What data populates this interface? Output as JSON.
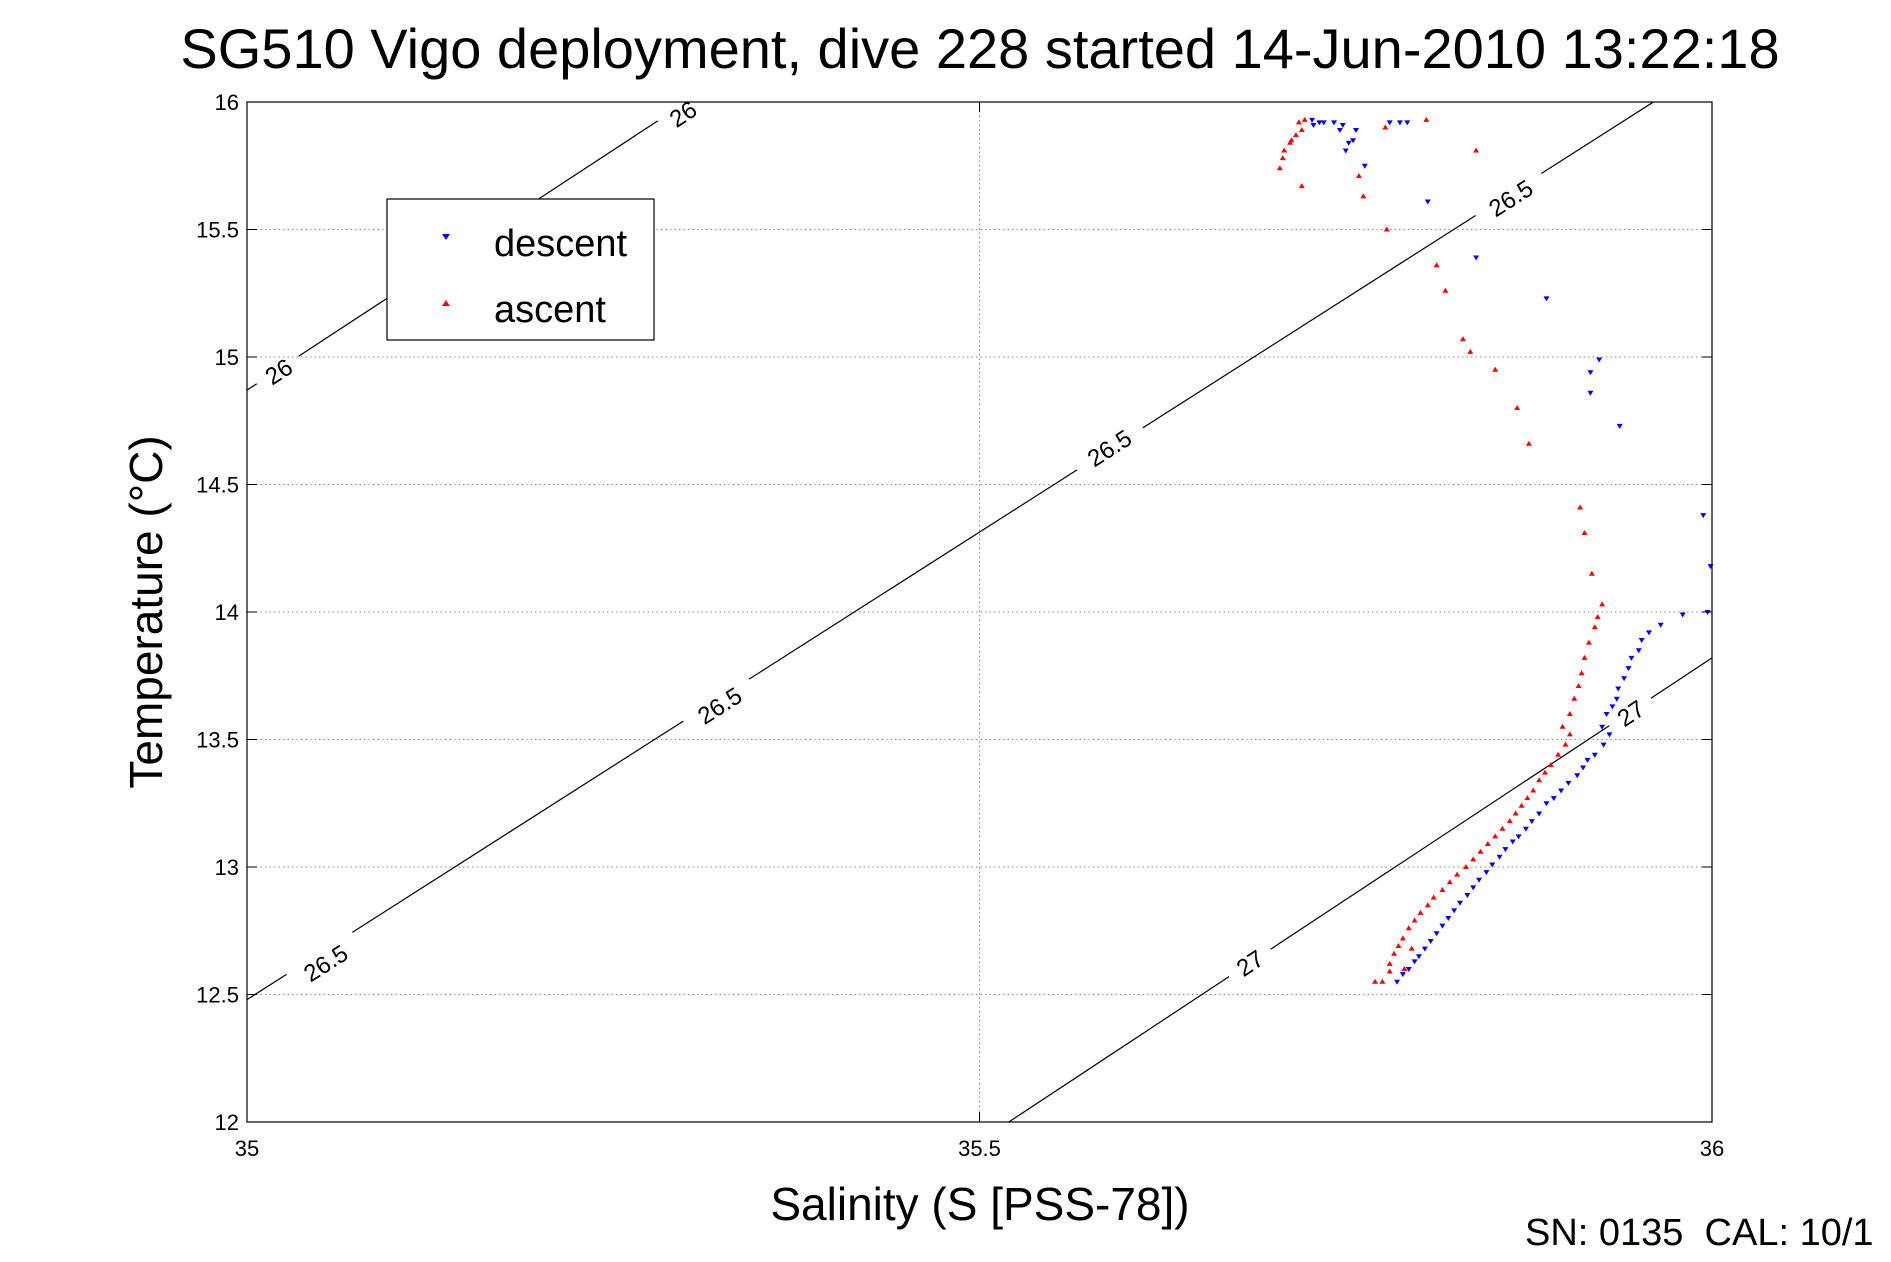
{
  "chart_data": {
    "type": "scatter",
    "title": "SG510 Vigo deployment, dive 228 started 14-Jun-2010 13:22:18",
    "xlabel": "Salinity (S [PSS-78])",
    "ylabel": "Temperature (°C)",
    "xlim": [
      35,
      36
    ],
    "ylim": [
      12,
      16
    ],
    "x_ticks": [
      "35",
      "35.5",
      "36"
    ],
    "y_ticks": [
      "12",
      "12.5",
      "13",
      "13.5",
      "14",
      "14.5",
      "15",
      "15.5",
      "16"
    ],
    "grid": true,
    "legend_position": "top-left",
    "footer_text": "SN: 0135  CAL: 10/1",
    "colors": {
      "descent": "#0000ff",
      "ascent": "#ff0000",
      "contour": "#000000",
      "grid": "#888888"
    },
    "contours": [
      {
        "label": "26",
        "points": [
          [
            35.0,
            14.87
          ],
          [
            35.3,
            16.0
          ]
        ],
        "label_positions": [
          [
            35.022,
            14.94
          ],
          [
            35.298,
            15.95
          ]
        ]
      },
      {
        "label": "26.5",
        "points": [
          [
            35.0,
            12.48
          ],
          [
            35.96,
            16.0
          ]
        ],
        "label_positions": [
          [
            35.054,
            12.62
          ],
          [
            35.323,
            13.63
          ],
          [
            35.589,
            14.64
          ],
          [
            35.863,
            15.62
          ]
        ]
      },
      {
        "label": "27",
        "points": [
          [
            35.52,
            12.0
          ],
          [
            36.0,
            13.82
          ]
        ],
        "label_positions": [
          [
            35.685,
            12.62
          ],
          [
            35.945,
            13.6
          ]
        ]
      }
    ],
    "series": [
      {
        "name": "descent",
        "marker": "triangle-down",
        "points": [
          [
            35.727,
            15.93
          ],
          [
            35.732,
            15.92
          ],
          [
            35.728,
            15.91
          ],
          [
            35.735,
            15.92
          ],
          [
            35.742,
            15.92
          ],
          [
            35.748,
            15.91
          ],
          [
            35.746,
            15.89
          ],
          [
            35.757,
            15.89
          ],
          [
            35.78,
            15.92
          ],
          [
            35.787,
            15.92
          ],
          [
            35.792,
            15.92
          ],
          [
            35.752,
            15.84
          ],
          [
            35.755,
            15.85
          ],
          [
            35.75,
            15.81
          ],
          [
            35.763,
            15.75
          ],
          [
            35.806,
            15.61
          ],
          [
            35.839,
            15.39
          ],
          [
            35.887,
            15.23
          ],
          [
            35.923,
            14.99
          ],
          [
            35.917,
            14.94
          ],
          [
            35.917,
            14.86
          ],
          [
            35.937,
            14.73
          ],
          [
            35.994,
            14.38
          ],
          [
            35.999,
            14.18
          ],
          [
            35.997,
            14.0
          ],
          [
            35.98,
            13.99
          ],
          [
            35.965,
            13.95
          ],
          [
            35.957,
            13.92
          ],
          [
            35.952,
            13.89
          ],
          [
            35.95,
            13.85
          ],
          [
            35.945,
            13.82
          ],
          [
            35.943,
            13.78
          ],
          [
            35.94,
            13.74
          ],
          [
            35.936,
            13.7
          ],
          [
            35.935,
            13.66
          ],
          [
            35.932,
            13.63
          ],
          [
            35.928,
            13.6
          ],
          [
            35.925,
            13.55
          ],
          [
            35.93,
            13.52
          ],
          [
            35.926,
            13.48
          ],
          [
            35.92,
            13.44
          ],
          [
            35.915,
            13.42
          ],
          [
            35.912,
            13.39
          ],
          [
            35.908,
            13.36
          ],
          [
            35.902,
            13.33
          ],
          [
            35.897,
            13.3
          ],
          [
            35.892,
            13.27
          ],
          [
            35.887,
            13.25
          ],
          [
            35.882,
            13.21
          ],
          [
            35.877,
            13.18
          ],
          [
            35.873,
            13.15
          ],
          [
            35.868,
            13.12
          ],
          [
            35.864,
            13.1
          ],
          [
            35.859,
            13.07
          ],
          [
            35.855,
            13.04
          ],
          [
            35.85,
            13.01
          ],
          [
            35.846,
            12.98
          ],
          [
            35.841,
            12.95
          ],
          [
            35.837,
            12.92
          ],
          [
            35.833,
            12.89
          ],
          [
            35.828,
            12.86
          ],
          [
            35.824,
            12.83
          ],
          [
            35.82,
            12.8
          ],
          [
            35.816,
            12.77
          ],
          [
            35.812,
            12.74
          ],
          [
            35.808,
            12.71
          ],
          [
            35.804,
            12.68
          ],
          [
            35.8,
            12.65
          ],
          [
            35.797,
            12.63
          ],
          [
            35.793,
            12.6
          ],
          [
            35.789,
            12.58
          ],
          [
            35.785,
            12.55
          ]
        ]
      },
      {
        "name": "ascent",
        "marker": "triangle-up",
        "points": [
          [
            35.722,
            15.93
          ],
          [
            35.718,
            15.92
          ],
          [
            35.72,
            15.89
          ],
          [
            35.716,
            15.87
          ],
          [
            35.712,
            15.84
          ],
          [
            35.708,
            15.81
          ],
          [
            35.707,
            15.78
          ],
          [
            35.705,
            15.74
          ],
          [
            35.713,
            15.85
          ],
          [
            35.72,
            15.67
          ],
          [
            35.777,
            15.9
          ],
          [
            35.805,
            15.93
          ],
          [
            35.839,
            15.81
          ],
          [
            35.759,
            15.71
          ],
          [
            35.762,
            15.63
          ],
          [
            35.778,
            15.5
          ],
          [
            35.812,
            15.36
          ],
          [
            35.818,
            15.26
          ],
          [
            35.83,
            15.07
          ],
          [
            35.835,
            15.02
          ],
          [
            35.852,
            14.95
          ],
          [
            35.867,
            14.8
          ],
          [
            35.875,
            14.66
          ],
          [
            35.91,
            14.41
          ],
          [
            35.913,
            14.31
          ],
          [
            35.918,
            14.15
          ],
          [
            35.925,
            14.03
          ],
          [
            35.922,
            13.98
          ],
          [
            35.92,
            13.94
          ],
          [
            35.916,
            13.88
          ],
          [
            35.913,
            13.82
          ],
          [
            35.911,
            13.76
          ],
          [
            35.909,
            13.71
          ],
          [
            35.906,
            13.66
          ],
          [
            35.903,
            13.6
          ],
          [
            35.898,
            13.55
          ],
          [
            35.903,
            13.52
          ],
          [
            35.9,
            13.48
          ],
          [
            35.895,
            13.44
          ],
          [
            35.89,
            13.4
          ],
          [
            35.886,
            13.37
          ],
          [
            35.882,
            13.34
          ],
          [
            35.878,
            13.3
          ],
          [
            35.874,
            13.27
          ],
          [
            35.87,
            13.24
          ],
          [
            35.866,
            13.21
          ],
          [
            35.862,
            13.18
          ],
          [
            35.857,
            13.15
          ],
          [
            35.852,
            13.12
          ],
          [
            35.847,
            13.09
          ],
          [
            35.842,
            13.06
          ],
          [
            35.837,
            13.03
          ],
          [
            35.832,
            13.0
          ],
          [
            35.826,
            12.97
          ],
          [
            35.821,
            12.94
          ],
          [
            35.816,
            12.91
          ],
          [
            35.81,
            12.88
          ],
          [
            35.806,
            12.85
          ],
          [
            35.801,
            12.82
          ],
          [
            35.797,
            12.79
          ],
          [
            35.793,
            12.76
          ],
          [
            35.789,
            12.72
          ],
          [
            35.786,
            12.69
          ],
          [
            35.783,
            12.66
          ],
          [
            35.78,
            12.62
          ],
          [
            35.78,
            12.59
          ],
          [
            35.79,
            12.6
          ],
          [
            35.795,
            12.68
          ],
          [
            35.77,
            12.55
          ],
          [
            35.775,
            12.55
          ]
        ]
      }
    ]
  }
}
